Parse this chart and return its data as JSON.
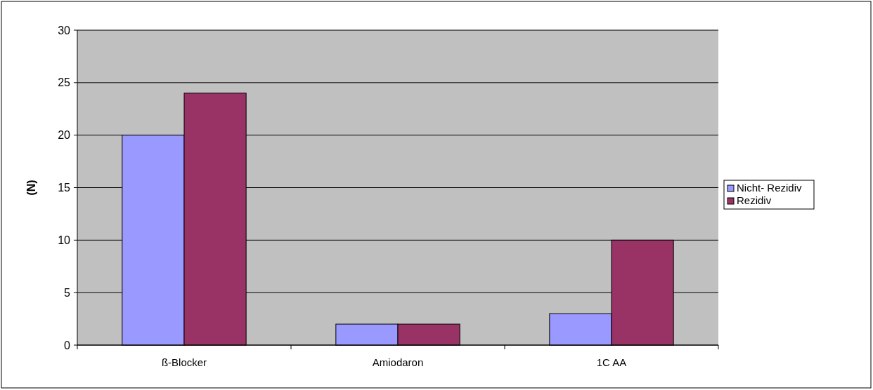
{
  "chart_data": {
    "type": "bar",
    "ylabel": "(N)",
    "categories": [
      "ß-Blocker",
      "Amiodaron",
      "1C AA"
    ],
    "series": [
      {
        "name": "Nicht- Rezidiv",
        "color": "#9999ff",
        "values": [
          20,
          2,
          3
        ]
      },
      {
        "name": "Rezidiv",
        "color": "#993366",
        "values": [
          24,
          2,
          10
        ]
      }
    ],
    "ylim": [
      0,
      30
    ],
    "yticks": [
      0,
      5,
      10,
      15,
      20,
      25,
      30
    ],
    "grid": "y",
    "legend": "right"
  }
}
